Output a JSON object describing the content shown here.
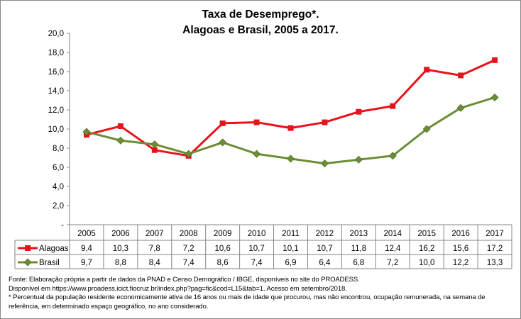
{
  "chart_data": {
    "type": "line",
    "title": [
      "Taxa de Desemprego*.",
      "Alagoas e Brasil, 2005 a 2017."
    ],
    "categories": [
      "2005",
      "2006",
      "2007",
      "2008",
      "2009",
      "2010",
      "2011",
      "2012",
      "2013",
      "2014",
      "2015",
      "2016",
      "2017"
    ],
    "ylim": [
      0,
      20
    ],
    "yticks": [
      "-",
      "2,0",
      "4,0",
      "6,0",
      "8,0",
      "10,0",
      "12,0",
      "14,0",
      "16,0",
      "18,0",
      "20,0"
    ],
    "grid": false,
    "legend": "data-table",
    "series": [
      {
        "name": "Alagoas",
        "color": "#e8121a",
        "marker": "square",
        "values": [
          9.4,
          10.3,
          7.8,
          7.2,
          10.6,
          10.7,
          10.1,
          10.7,
          11.8,
          12.4,
          16.2,
          15.6,
          17.2
        ],
        "labels": [
          "9,4",
          "10,3",
          "7,8",
          "7,2",
          "10,6",
          "10,7",
          "10,1",
          "10,7",
          "11,8",
          "12,4",
          "16,2",
          "15,6",
          "17,2"
        ]
      },
      {
        "name": "Brasil",
        "color": "#6b8e35",
        "marker": "diamond",
        "values": [
          9.7,
          8.8,
          8.4,
          7.4,
          8.6,
          7.4,
          6.9,
          6.4,
          6.8,
          7.2,
          10.0,
          12.2,
          13.3
        ],
        "labels": [
          "9,7",
          "8,8",
          "8,4",
          "7,4",
          "8,6",
          "7,4",
          "6,9",
          "6,4",
          "6,8",
          "7,2",
          "10,0",
          "12,2",
          "13,3"
        ]
      }
    ]
  },
  "notes": [
    "Fonte: Elaboração própria a partir de dados da PNAD e Censo Demográfico / IBGE, disponíveis no site do PROADESS.",
    "Disponível em https://www.proadess.icict.fiocruz.br/index.php?pag=fic&cod=L15&tab=1. Acesso em  setembro/2018.",
    "* Percentual da população residente economicamente ativa de 16 anos ou mais de idade que procurou, mas não encontrou, ocupação remunerada, na semana de",
    "referência, em determinado espaço geográfico, no ano considerado."
  ]
}
